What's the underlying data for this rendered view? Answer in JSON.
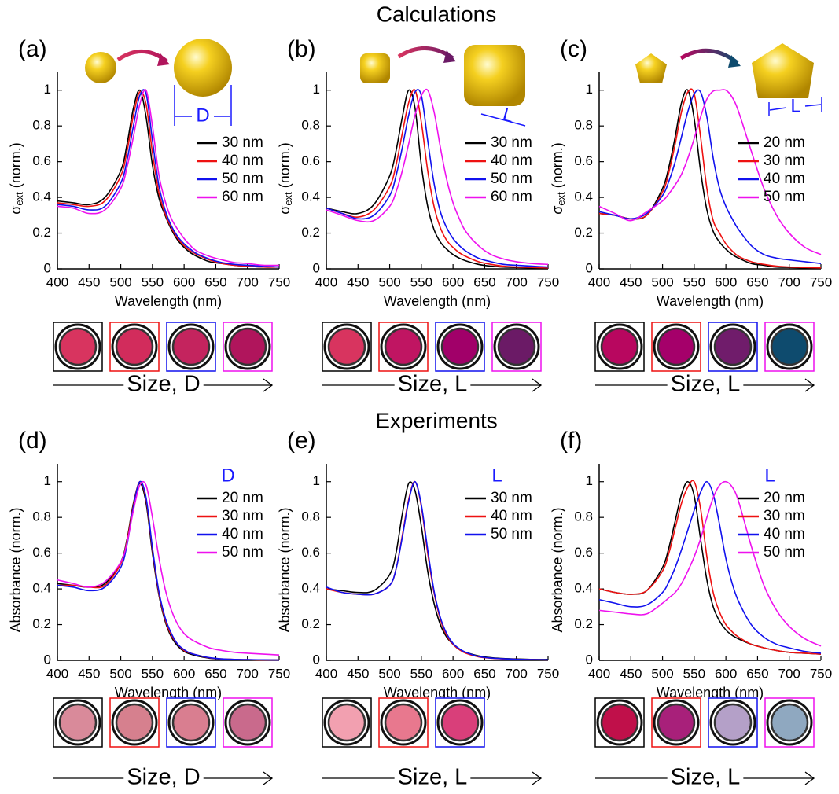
{
  "sections": {
    "calculations": "Calculations",
    "experiments": "Experiments"
  },
  "chart_data": [
    {
      "type": "line",
      "panel": "(a)",
      "dimension_label": "D",
      "caption": "Size, D",
      "xlabel": "Wavelength (nm)",
      "ylabel": {
        "symbol": "σ",
        "subscript": "ext",
        "unit": "(norm.)"
      },
      "xlim": [
        400,
        750
      ],
      "xticks": [
        400,
        450,
        500,
        550,
        600,
        650,
        700,
        750
      ],
      "ylim": [
        0,
        1.1
      ],
      "yticks": [
        0,
        0.2,
        0.4,
        0.6,
        0.8,
        1
      ],
      "x": [
        400,
        425,
        450,
        475,
        500,
        510,
        520,
        530,
        540,
        550,
        560,
        570,
        580,
        590,
        600,
        610,
        620,
        640,
        660,
        680,
        700,
        725,
        750
      ],
      "series": [
        {
          "name": "30 nm",
          "color": "#000000",
          "values": [
            0.38,
            0.37,
            0.36,
            0.4,
            0.55,
            0.7,
            0.9,
            1.0,
            0.85,
            0.58,
            0.4,
            0.3,
            0.22,
            0.16,
            0.12,
            0.09,
            0.07,
            0.04,
            0.03,
            0.02,
            0.015,
            0.01,
            0.01
          ]
        },
        {
          "name": "40 nm",
          "color": "#ee1111",
          "values": [
            0.37,
            0.36,
            0.35,
            0.38,
            0.52,
            0.66,
            0.86,
            0.99,
            0.92,
            0.65,
            0.43,
            0.31,
            0.23,
            0.17,
            0.13,
            0.1,
            0.08,
            0.05,
            0.03,
            0.02,
            0.015,
            0.01,
            0.01
          ]
        },
        {
          "name": "50 nm",
          "color": "#1111ee",
          "values": [
            0.36,
            0.35,
            0.33,
            0.35,
            0.48,
            0.61,
            0.8,
            0.97,
            0.98,
            0.72,
            0.47,
            0.33,
            0.24,
            0.18,
            0.14,
            0.11,
            0.085,
            0.055,
            0.035,
            0.025,
            0.02,
            0.015,
            0.01
          ]
        },
        {
          "name": "60 nm",
          "color": "#ee11ee",
          "values": [
            0.35,
            0.34,
            0.31,
            0.33,
            0.45,
            0.57,
            0.74,
            0.92,
            1.0,
            0.8,
            0.53,
            0.38,
            0.28,
            0.22,
            0.17,
            0.13,
            0.1,
            0.07,
            0.05,
            0.035,
            0.03,
            0.02,
            0.02
          ]
        }
      ],
      "swatch_colors": [
        "#d8345f",
        "#d22c5c",
        "#c4245e",
        "#b0155c"
      ]
    },
    {
      "type": "line",
      "panel": "(b)",
      "dimension_label": "L",
      "caption": "Size, L",
      "xlabel": "Wavelength (nm)",
      "ylabel": {
        "symbol": "σ",
        "subscript": "ext",
        "unit": "(norm.)"
      },
      "xlim": [
        400,
        750
      ],
      "xticks": [
        400,
        450,
        500,
        550,
        600,
        650,
        700,
        750
      ],
      "ylim": [
        0,
        1.1
      ],
      "yticks": [
        0,
        0.2,
        0.4,
        0.6,
        0.8,
        1
      ],
      "x": [
        400,
        425,
        450,
        475,
        500,
        510,
        520,
        530,
        540,
        550,
        560,
        570,
        580,
        590,
        600,
        610,
        620,
        640,
        660,
        680,
        700,
        725,
        750
      ],
      "series": [
        {
          "name": "30 nm",
          "color": "#000000",
          "values": [
            0.34,
            0.32,
            0.31,
            0.36,
            0.52,
            0.66,
            0.85,
            1.0,
            0.9,
            0.58,
            0.35,
            0.22,
            0.15,
            0.11,
            0.08,
            0.06,
            0.045,
            0.025,
            0.015,
            0.01,
            0.008,
            0.005,
            0.005
          ]
        },
        {
          "name": "40 nm",
          "color": "#ee1111",
          "values": [
            0.34,
            0.31,
            0.29,
            0.33,
            0.46,
            0.58,
            0.76,
            0.93,
            1.0,
            0.82,
            0.55,
            0.35,
            0.23,
            0.16,
            0.12,
            0.09,
            0.07,
            0.04,
            0.025,
            0.015,
            0.01,
            0.008,
            0.005
          ]
        },
        {
          "name": "50 nm",
          "color": "#1111ee",
          "values": [
            0.34,
            0.31,
            0.28,
            0.3,
            0.41,
            0.52,
            0.68,
            0.86,
            0.99,
            0.97,
            0.72,
            0.48,
            0.32,
            0.23,
            0.17,
            0.13,
            0.1,
            0.06,
            0.04,
            0.025,
            0.02,
            0.015,
            0.01
          ]
        },
        {
          "name": "60 nm",
          "color": "#ee11ee",
          "values": [
            0.33,
            0.3,
            0.27,
            0.27,
            0.35,
            0.43,
            0.55,
            0.7,
            0.86,
            0.97,
            1.0,
            0.88,
            0.68,
            0.5,
            0.37,
            0.28,
            0.21,
            0.13,
            0.08,
            0.055,
            0.04,
            0.03,
            0.025
          ]
        }
      ],
      "swatch_colors": [
        "#d8345f",
        "#c01562",
        "#a10069",
        "#6b1a66"
      ]
    },
    {
      "type": "line",
      "panel": "(c)",
      "dimension_label": "L",
      "caption": "Size, L",
      "xlabel": "Wavelength (nm)",
      "ylabel": {
        "symbol": "σ",
        "subscript": "ext",
        "unit": "(norm.)"
      },
      "xlim": [
        400,
        750
      ],
      "xticks": [
        400,
        450,
        500,
        550,
        600,
        650,
        700,
        750
      ],
      "ylim": [
        0,
        1.1
      ],
      "yticks": [
        0,
        0.2,
        0.4,
        0.6,
        0.8,
        1
      ],
      "x": [
        400,
        425,
        450,
        475,
        500,
        510,
        520,
        530,
        540,
        550,
        560,
        570,
        580,
        590,
        600,
        610,
        620,
        640,
        660,
        680,
        700,
        725,
        750
      ],
      "series": [
        {
          "name": "20 nm",
          "color": "#000000",
          "values": [
            0.31,
            0.3,
            0.28,
            0.3,
            0.45,
            0.57,
            0.74,
            0.93,
            1.0,
            0.84,
            0.55,
            0.33,
            0.21,
            0.15,
            0.11,
            0.08,
            0.06,
            0.03,
            0.02,
            0.01,
            0.008,
            0.005,
            0.005
          ]
        },
        {
          "name": "30 nm",
          "color": "#ee1111",
          "values": [
            0.31,
            0.3,
            0.28,
            0.3,
            0.43,
            0.54,
            0.7,
            0.88,
            0.99,
            0.98,
            0.74,
            0.45,
            0.27,
            0.2,
            0.14,
            0.1,
            0.07,
            0.04,
            0.025,
            0.015,
            0.01,
            0.008,
            0.005
          ]
        },
        {
          "name": "40 nm",
          "color": "#1111ee",
          "values": [
            0.32,
            0.3,
            0.28,
            0.31,
            0.41,
            0.49,
            0.6,
            0.74,
            0.88,
            0.98,
            0.99,
            0.85,
            0.62,
            0.45,
            0.35,
            0.28,
            0.22,
            0.13,
            0.08,
            0.06,
            0.05,
            0.04,
            0.03
          ]
        },
        {
          "name": "50 nm",
          "color": "#ee11ee",
          "values": [
            0.35,
            0.31,
            0.27,
            0.32,
            0.38,
            0.42,
            0.47,
            0.53,
            0.62,
            0.73,
            0.85,
            0.95,
            0.995,
            1.0,
            1.0,
            0.96,
            0.88,
            0.66,
            0.45,
            0.3,
            0.2,
            0.12,
            0.08
          ]
        }
      ],
      "swatch_colors": [
        "#b8075f",
        "#a5006a",
        "#701c6b",
        "#0e4b6e"
      ]
    },
    {
      "type": "line",
      "panel": "(d)",
      "legend_title": "D",
      "caption": "Size, D",
      "xlabel": "Wavelength (nm)",
      "ylabel": "Absorbance (norm.)",
      "xlim": [
        400,
        750
      ],
      "xticks": [
        400,
        450,
        500,
        550,
        600,
        650,
        700,
        750
      ],
      "ylim": [
        0,
        1.1
      ],
      "yticks": [
        0,
        0.2,
        0.4,
        0.6,
        0.8,
        1
      ],
      "x": [
        400,
        425,
        450,
        475,
        500,
        510,
        520,
        530,
        540,
        550,
        560,
        570,
        580,
        590,
        600,
        610,
        620,
        640,
        660,
        680,
        700,
        725,
        750
      ],
      "series": [
        {
          "name": "20 nm",
          "color": "#000000",
          "values": [
            0.43,
            0.42,
            0.41,
            0.43,
            0.55,
            0.68,
            0.88,
            0.99,
            0.88,
            0.6,
            0.37,
            0.22,
            0.13,
            0.08,
            0.05,
            0.035,
            0.025,
            0.012,
            0.007,
            0.005,
            0.003,
            0.002,
            0.002
          ]
        },
        {
          "name": "30 nm",
          "color": "#ee1111",
          "values": [
            0.42,
            0.42,
            0.41,
            0.42,
            0.54,
            0.67,
            0.87,
            1.0,
            0.9,
            0.62,
            0.38,
            0.23,
            0.14,
            0.09,
            0.055,
            0.04,
            0.03,
            0.014,
            0.008,
            0.005,
            0.004,
            0.002,
            0.002
          ]
        },
        {
          "name": "40 nm",
          "color": "#1111ee",
          "values": [
            0.42,
            0.41,
            0.39,
            0.41,
            0.52,
            0.65,
            0.86,
            1.0,
            0.91,
            0.63,
            0.39,
            0.24,
            0.15,
            0.09,
            0.06,
            0.04,
            0.03,
            0.015,
            0.008,
            0.005,
            0.004,
            0.003,
            0.002
          ]
        },
        {
          "name": "50 nm",
          "color": "#ee11ee",
          "values": [
            0.45,
            0.43,
            0.41,
            0.44,
            0.55,
            0.66,
            0.84,
            0.98,
            0.98,
            0.8,
            0.58,
            0.4,
            0.28,
            0.2,
            0.15,
            0.12,
            0.1,
            0.07,
            0.055,
            0.045,
            0.04,
            0.035,
            0.03
          ]
        }
      ],
      "swatch_colors": [
        "#d98a9a",
        "#d6808e",
        "#d97e90",
        "#c96a8c"
      ]
    },
    {
      "type": "line",
      "panel": "(e)",
      "legend_title": "L",
      "caption": "Size, L",
      "xlabel": "Wavelength (nm)",
      "ylabel": "Absorbance (norm.)",
      "xlim": [
        400,
        750
      ],
      "xticks": [
        400,
        450,
        500,
        550,
        600,
        650,
        700,
        750
      ],
      "ylim": [
        0,
        1.1
      ],
      "yticks": [
        0,
        0.2,
        0.4,
        0.6,
        0.8,
        1
      ],
      "x": [
        400,
        425,
        450,
        475,
        500,
        510,
        520,
        530,
        540,
        550,
        560,
        570,
        580,
        590,
        600,
        610,
        620,
        640,
        660,
        680,
        700,
        725,
        750
      ],
      "series": [
        {
          "name": "30 nm",
          "color": "#000000",
          "values": [
            0.4,
            0.39,
            0.38,
            0.39,
            0.48,
            0.6,
            0.82,
            0.99,
            0.95,
            0.75,
            0.5,
            0.32,
            0.2,
            0.13,
            0.09,
            0.06,
            0.045,
            0.025,
            0.015,
            0.01,
            0.008,
            0.005,
            0.005
          ]
        },
        {
          "name": "40 nm",
          "color": "#ee1111",
          "values": [
            0.4,
            0.38,
            0.37,
            0.37,
            0.42,
            0.51,
            0.7,
            0.9,
            1.0,
            0.86,
            0.6,
            0.38,
            0.23,
            0.14,
            0.09,
            0.06,
            0.04,
            0.02,
            0.012,
            0.008,
            0.006,
            0.004,
            0.003
          ]
        },
        {
          "name": "50 nm",
          "color": "#1111ee",
          "values": [
            0.41,
            0.38,
            0.37,
            0.37,
            0.42,
            0.51,
            0.69,
            0.89,
            1.0,
            0.87,
            0.62,
            0.39,
            0.24,
            0.15,
            0.095,
            0.065,
            0.045,
            0.022,
            0.013,
            0.009,
            0.006,
            0.004,
            0.003
          ]
        }
      ],
      "swatch_colors": [
        "#f2a0b0",
        "#e8788e",
        "#d93f7a"
      ]
    },
    {
      "type": "line",
      "panel": "(f)",
      "legend_title": "L",
      "caption": "Size, L",
      "xlabel": "Wavelength (nm)",
      "ylabel": "Absorbance (norm.)",
      "xlim": [
        400,
        750
      ],
      "xticks": [
        400,
        450,
        500,
        550,
        600,
        650,
        700,
        750
      ],
      "ylim": [
        0,
        1.1
      ],
      "yticks": [
        0,
        0.2,
        0.4,
        0.6,
        0.8,
        1
      ],
      "x": [
        400,
        425,
        450,
        475,
        500,
        510,
        520,
        530,
        540,
        550,
        560,
        570,
        580,
        590,
        600,
        610,
        620,
        640,
        660,
        680,
        700,
        725,
        750
      ],
      "series": [
        {
          "name": "20 nm",
          "color": "#000000",
          "values": [
            0.4,
            0.38,
            0.37,
            0.39,
            0.52,
            0.63,
            0.78,
            0.93,
            1.0,
            0.92,
            0.68,
            0.45,
            0.3,
            0.22,
            0.17,
            0.14,
            0.12,
            0.09,
            0.07,
            0.055,
            0.045,
            0.04,
            0.035
          ]
        },
        {
          "name": "30 nm",
          "color": "#ee1111",
          "values": [
            0.4,
            0.38,
            0.37,
            0.39,
            0.5,
            0.6,
            0.74,
            0.88,
            0.97,
            1.0,
            0.85,
            0.58,
            0.38,
            0.27,
            0.2,
            0.16,
            0.13,
            0.09,
            0.07,
            0.055,
            0.045,
            0.04,
            0.035
          ]
        },
        {
          "name": "40 nm",
          "color": "#1111ee",
          "values": [
            0.34,
            0.32,
            0.3,
            0.31,
            0.38,
            0.44,
            0.52,
            0.62,
            0.73,
            0.84,
            0.94,
            1.0,
            0.93,
            0.76,
            0.57,
            0.43,
            0.33,
            0.2,
            0.13,
            0.09,
            0.07,
            0.05,
            0.04
          ]
        },
        {
          "name": "50 nm",
          "color": "#ee11ee",
          "values": [
            0.28,
            0.27,
            0.26,
            0.26,
            0.32,
            0.35,
            0.38,
            0.43,
            0.5,
            0.58,
            0.68,
            0.8,
            0.91,
            0.98,
            1.0,
            0.97,
            0.89,
            0.64,
            0.42,
            0.28,
            0.19,
            0.12,
            0.08
          ]
        }
      ],
      "swatch_colors": [
        "#c0104a",
        "#a8207a",
        "#b4a0c8",
        "#8fa8c0"
      ]
    }
  ]
}
